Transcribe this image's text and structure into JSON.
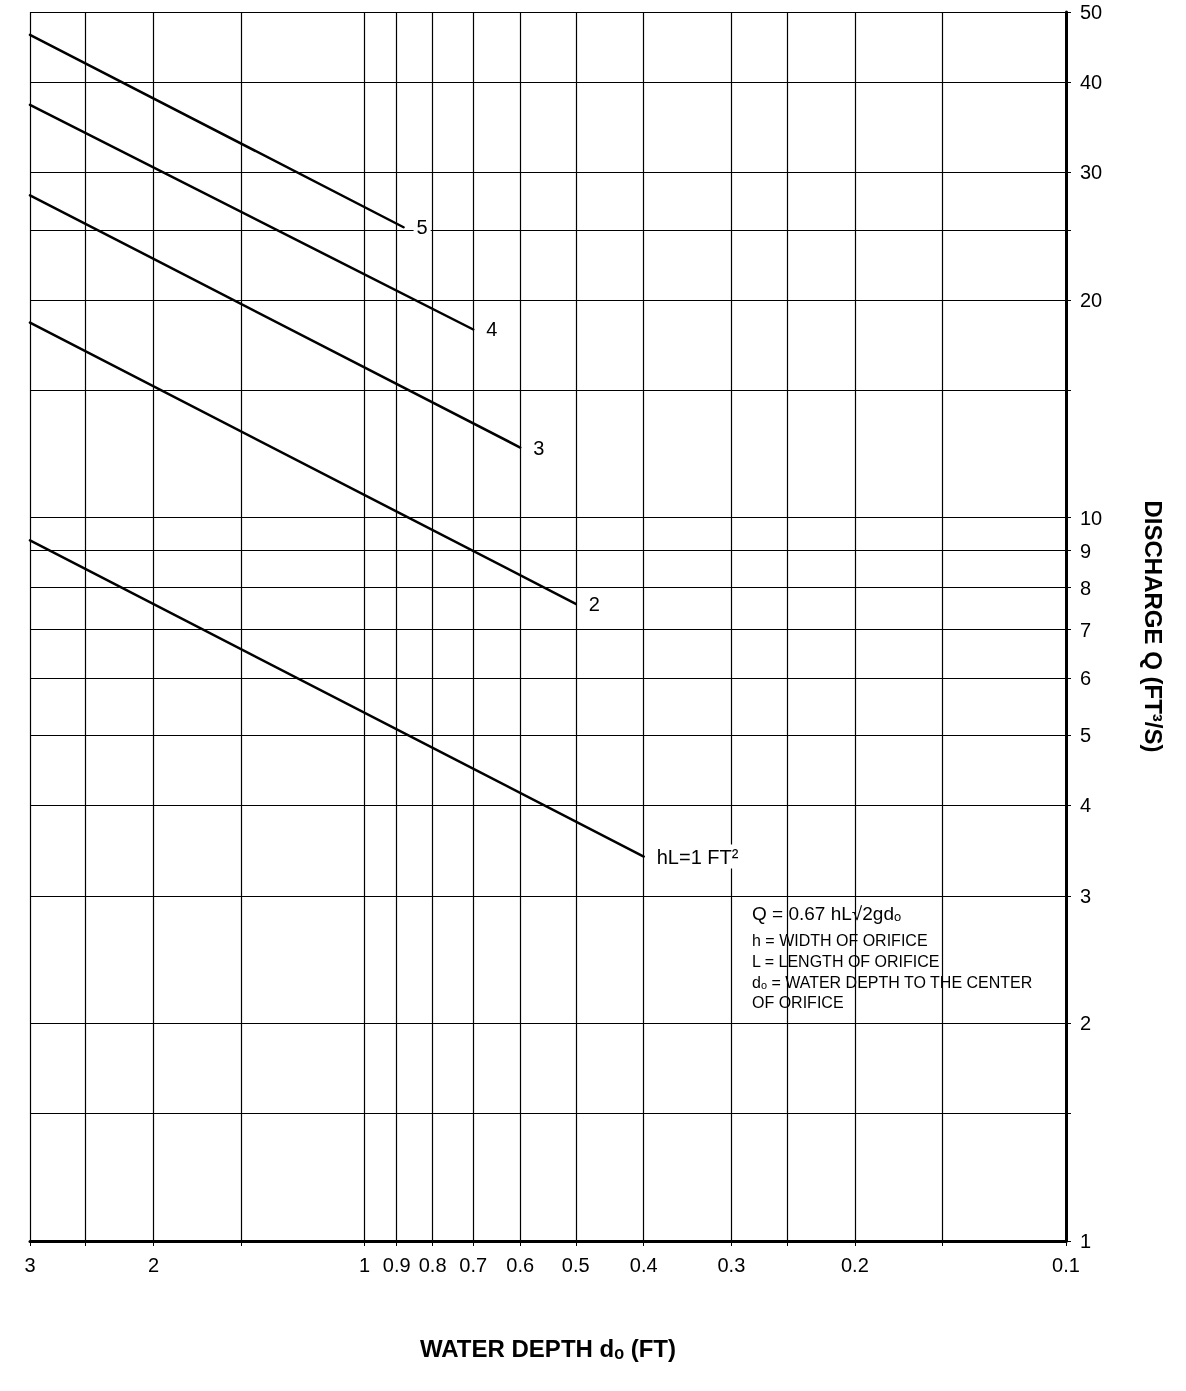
{
  "chart_data": {
    "type": "line",
    "xlabel": "WATER DEPTH dₒ (FT)",
    "ylabel": "DISCHARGE Q (FT³/S)",
    "log": "xy",
    "grid": true,
    "legend": false,
    "marker": "none",
    "line_style": "solid",
    "xlim": [
      3,
      0.1
    ],
    "xticks": [
      3,
      {
        "value": 2.5,
        "label": null
      },
      2,
      {
        "value": 1.5,
        "label": null
      },
      1,
      0.9,
      0.8,
      0.7,
      0.6,
      0.5,
      0.4,
      0.3,
      {
        "value": 0.25,
        "label": null
      },
      0.2,
      {
        "value": 0.15,
        "label": null
      },
      0.1
    ],
    "ylim": [
      1,
      50
    ],
    "yticks": [
      1,
      {
        "value": 1.5,
        "label": null
      },
      2,
      3,
      4,
      5,
      6,
      7,
      8,
      9,
      10,
      {
        "value": 15,
        "label": null
      },
      20,
      {
        "value": 25,
        "label": null
      },
      30,
      40,
      50
    ],
    "series": [
      {
        "name": "hL=1 FT²",
        "color": "#000000",
        "x": [
          3,
          0.4
        ],
        "values": [
          9.3,
          3.4
        ]
      },
      {
        "name": "2",
        "color": "#000000",
        "x": [
          3,
          0.5
        ],
        "values": [
          18.6,
          7.6
        ]
      },
      {
        "name": "3",
        "color": "#000000",
        "x": [
          3,
          0.6
        ],
        "values": [
          27.9,
          12.5
        ]
      },
      {
        "name": "4",
        "color": "#000000",
        "x": [
          3,
          0.7
        ],
        "values": [
          37.2,
          18.2
        ]
      },
      {
        "name": "5",
        "color": "#000000",
        "x": [
          3,
          0.88
        ],
        "values": [
          46.5,
          25.2
        ]
      }
    ],
    "annotations": [
      "Q = 0.67 hL√2gdₒ",
      "h = WIDTH OF ORIFICE",
      "L = LENGTH OF ORIFICE",
      "dₒ = WATER DEPTH TO THE CENTER OF ORIFICE"
    ]
  }
}
